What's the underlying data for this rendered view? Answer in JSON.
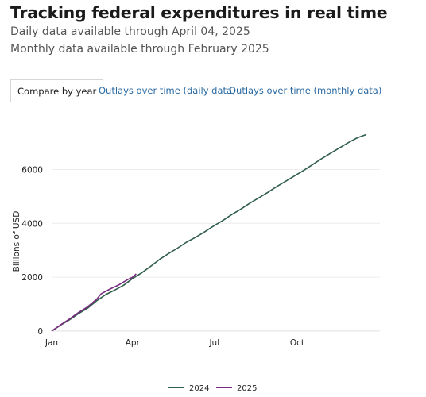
{
  "header": {
    "title": "Tracking federal expenditures in real time",
    "subtitle_daily": "Daily data available through April 04, 2025",
    "subtitle_monthly": "Monthly data available through February 2025"
  },
  "tabs": [
    {
      "label": "Compare by year",
      "active": true
    },
    {
      "label": "Outlays over time (daily data)",
      "active": false
    },
    {
      "label": "Outlays over time (monthly data)",
      "active": false
    }
  ],
  "chart_data": {
    "type": "line",
    "xlabel": "",
    "ylabel": "Billions of USD",
    "xlim": [
      0,
      365
    ],
    "ylim": [
      -150,
      7400
    ],
    "x_ticks": [
      {
        "label": "Jan",
        "day": 0
      },
      {
        "label": "Apr",
        "day": 90
      },
      {
        "label": "Jul",
        "day": 181
      },
      {
        "label": "Oct",
        "day": 273
      }
    ],
    "y_ticks": [
      0,
      2000,
      4000,
      6000
    ],
    "grid": true,
    "legend": "bottom",
    "series": [
      {
        "name": "2024",
        "color": "#2f5e4a",
        "points": [
          [
            0,
            0
          ],
          [
            10,
            220
          ],
          [
            20,
            420
          ],
          [
            30,
            650
          ],
          [
            40,
            850
          ],
          [
            50,
            1120
          ],
          [
            60,
            1350
          ],
          [
            70,
            1520
          ],
          [
            80,
            1700
          ],
          [
            90,
            1950
          ],
          [
            100,
            2160
          ],
          [
            110,
            2400
          ],
          [
            120,
            2660
          ],
          [
            130,
            2880
          ],
          [
            140,
            3080
          ],
          [
            150,
            3300
          ],
          [
            160,
            3480
          ],
          [
            170,
            3680
          ],
          [
            180,
            3900
          ],
          [
            190,
            4100
          ],
          [
            200,
            4320
          ],
          [
            210,
            4520
          ],
          [
            220,
            4740
          ],
          [
            230,
            4940
          ],
          [
            240,
            5140
          ],
          [
            250,
            5360
          ],
          [
            260,
            5560
          ],
          [
            270,
            5760
          ],
          [
            280,
            5960
          ],
          [
            290,
            6180
          ],
          [
            300,
            6400
          ],
          [
            310,
            6600
          ],
          [
            320,
            6800
          ],
          [
            330,
            7000
          ],
          [
            340,
            7180
          ],
          [
            350,
            7300
          ]
        ]
      },
      {
        "name": "2025",
        "color": "#7a2a80",
        "points": [
          [
            0,
            0
          ],
          [
            10,
            230
          ],
          [
            20,
            450
          ],
          [
            30,
            690
          ],
          [
            40,
            900
          ],
          [
            50,
            1180
          ],
          [
            55,
            1380
          ],
          [
            60,
            1470
          ],
          [
            65,
            1560
          ],
          [
            70,
            1640
          ],
          [
            75,
            1720
          ],
          [
            80,
            1820
          ],
          [
            85,
            1920
          ],
          [
            90,
            2000
          ],
          [
            94,
            2120
          ]
        ]
      }
    ]
  }
}
